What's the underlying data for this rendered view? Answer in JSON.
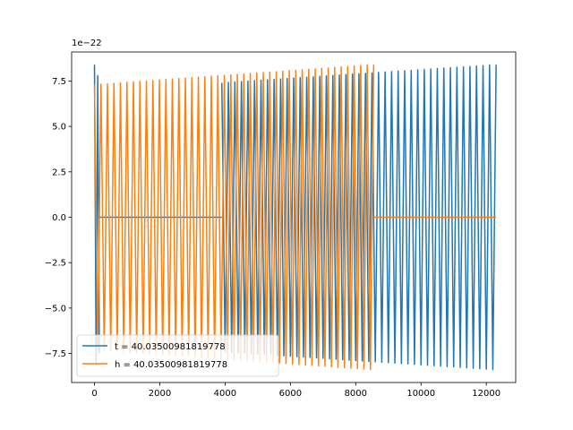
{
  "chart_data": {
    "type": "line",
    "title": "",
    "xlabel": "",
    "ylabel": "",
    "offset_text": "1e−22",
    "xlim": [
      -700,
      12900
    ],
    "ylim": [
      -9.1,
      9.1
    ],
    "xticks": [
      0,
      2000,
      4000,
      6000,
      8000,
      10000,
      12000
    ],
    "xtick_labels": [
      "0",
      "2000",
      "4000",
      "6000",
      "8000",
      "10000",
      "12000"
    ],
    "yticks": [
      -7.5,
      -5.0,
      -2.5,
      0.0,
      2.5,
      5.0,
      7.5
    ],
    "ytick_labels": [
      "−7.5",
      "−5.0",
      "−2.5",
      "0.0",
      "2.5",
      "5.0",
      "7.5"
    ],
    "grid": false,
    "legend_position": "lower-left",
    "series": [
      {
        "name": "t = 40.03500981819778",
        "color": "#1f77b4",
        "segments": [
          {
            "kind": "oscillation",
            "x_start": 0,
            "x_end": 150,
            "amp_start": 8.4,
            "amp_end": 7.5,
            "period": 100
          },
          {
            "kind": "flat",
            "x_start": 150,
            "x_end": 3900,
            "value": 0.0
          },
          {
            "kind": "oscillation",
            "x_start": 3900,
            "x_end": 12300,
            "amp_start": 7.4,
            "amp_end": 8.4,
            "period": 200
          }
        ]
      },
      {
        "name": "h = 40.03500981819778",
        "color": "#ff7f0e",
        "segments": [
          {
            "kind": "oscillation",
            "x_start": 0,
            "x_end": 8550,
            "amp_start": 7.3,
            "amp_end": 8.4,
            "period": 200
          },
          {
            "kind": "flat",
            "x_start": 8550,
            "x_end": 12300,
            "value": 0.0
          }
        ]
      }
    ]
  }
}
